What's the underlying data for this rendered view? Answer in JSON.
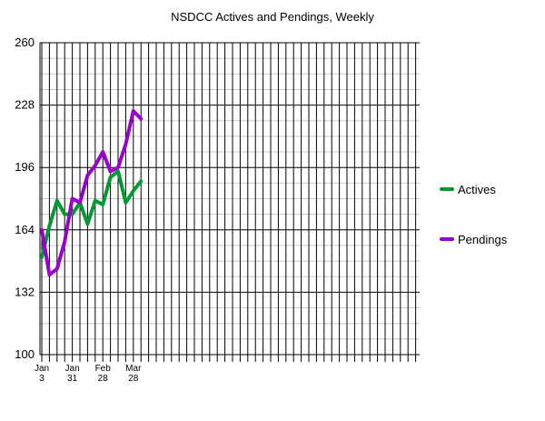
{
  "chart_data": {
    "type": "line",
    "title": "NSDCC Actives and Pendings, Weekly",
    "xlabel": "",
    "ylabel": "",
    "ylim": [
      100,
      260
    ],
    "yticks": [
      100,
      132,
      164,
      196,
      228,
      260
    ],
    "grid": true,
    "legend_position": "right",
    "x_labels": [
      {
        "index": 0,
        "lines": [
          "Jan",
          "3"
        ]
      },
      {
        "index": 4,
        "lines": [
          "Jan",
          "31"
        ]
      },
      {
        "index": 8,
        "lines": [
          "Feb",
          "28"
        ]
      },
      {
        "index": 12,
        "lines": [
          "Mar",
          "28"
        ]
      }
    ],
    "x_count": 52,
    "series": [
      {
        "name": "Actives",
        "color": "#009933",
        "values": [
          150,
          166,
          179,
          172,
          172,
          178,
          167,
          179,
          177,
          191,
          194,
          178,
          184,
          189
        ]
      },
      {
        "name": "Pendings",
        "color": "#9900cc",
        "values": [
          164,
          141,
          144,
          158,
          180,
          178,
          192,
          197,
          204,
          194,
          196,
          208,
          225,
          221
        ]
      }
    ]
  }
}
